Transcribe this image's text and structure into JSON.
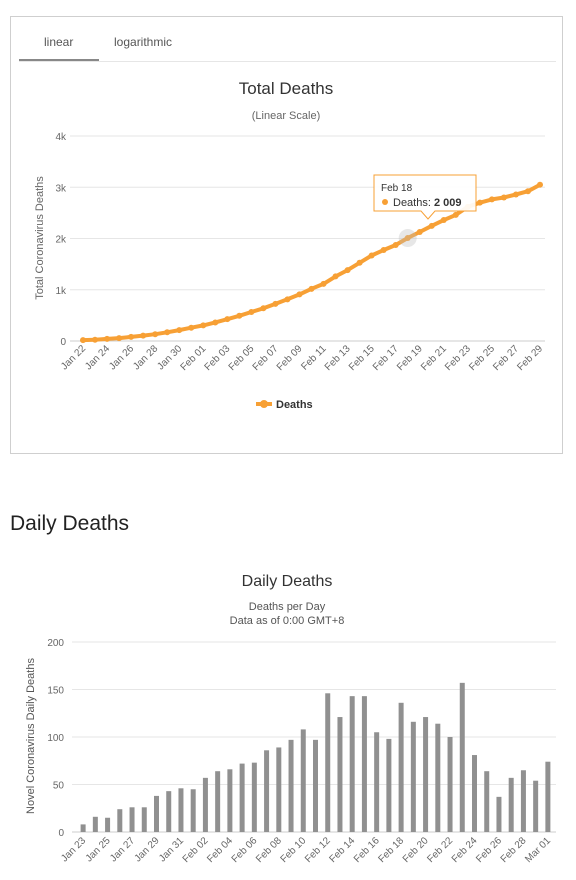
{
  "tabs": [
    {
      "label": "linear",
      "active": true
    },
    {
      "label": "logarithmic",
      "active": false
    }
  ],
  "colors": {
    "line_series": "#f7a035",
    "bar_series": "#909090",
    "grid": "#e6e6e6",
    "tooltip_border": "#f7a035"
  },
  "section_heading": "Daily Deaths",
  "chart_data": [
    {
      "type": "line",
      "title": "Total Deaths",
      "subtitle": "(Linear Scale)",
      "xlabel": "",
      "ylabel": "Total Coronavirus Deaths",
      "ylim": [
        0,
        4000
      ],
      "yticks": [
        "0",
        "1k",
        "2k",
        "3k",
        "4k"
      ],
      "ytick_values": [
        0,
        1000,
        2000,
        3000,
        4000
      ],
      "grid": true,
      "legend": "bottom-center",
      "x": [
        "Jan 22",
        "Jan 23",
        "Jan 24",
        "Jan 25",
        "Jan 26",
        "Jan 27",
        "Jan 28",
        "Jan 29",
        "Jan 30",
        "Jan 31",
        "Feb 01",
        "Feb 02",
        "Feb 03",
        "Feb 04",
        "Feb 05",
        "Feb 06",
        "Feb 07",
        "Feb 08",
        "Feb 09",
        "Feb 10",
        "Feb 11",
        "Feb 12",
        "Feb 13",
        "Feb 14",
        "Feb 15",
        "Feb 16",
        "Feb 17",
        "Feb 18",
        "Feb 19",
        "Feb 20",
        "Feb 21",
        "Feb 22",
        "Feb 23",
        "Feb 24",
        "Feb 25",
        "Feb 26",
        "Feb 27",
        "Feb 28",
        "Feb 29"
      ],
      "xtick_labels": [
        "Jan 22",
        "Jan 24",
        "Jan 26",
        "Jan 28",
        "Jan 30",
        "Feb 01",
        "Feb 03",
        "Feb 05",
        "Feb 07",
        "Feb 09",
        "Feb 11",
        "Feb 13",
        "Feb 15",
        "Feb 17",
        "Feb 19",
        "Feb 21",
        "Feb 23",
        "Feb 25",
        "Feb 27",
        "Feb 29"
      ],
      "series": [
        {
          "name": "Deaths",
          "values": [
            17,
            25,
            41,
            56,
            80,
            106,
            132,
            170,
            213,
            259,
            304,
            362,
            426,
            492,
            565,
            638,
            724,
            813,
            910,
            1018,
            1115,
            1261,
            1383,
            1526,
            1669,
            1775,
            1873,
            2009,
            2126,
            2247,
            2360,
            2460,
            2618,
            2699,
            2763,
            2800,
            2858,
            2923,
            3050
          ]
        }
      ],
      "tooltip": {
        "date": "Feb 18",
        "label": "Deaths",
        "value": "2 009"
      }
    },
    {
      "type": "bar",
      "title": "Daily Deaths",
      "subtitle_lines": [
        "Deaths per Day",
        "Data as of 0:00 GMT+8"
      ],
      "xlabel": "",
      "ylabel": "Novel Coronavirus Daily Deaths",
      "ylim": [
        0,
        200
      ],
      "yticks": [
        "0",
        "50",
        "100",
        "150",
        "200"
      ],
      "ytick_values": [
        0,
        50,
        100,
        150,
        200
      ],
      "grid": true,
      "categories": [
        "Jan 23",
        "Jan 24",
        "Jan 25",
        "Jan 26",
        "Jan 27",
        "Jan 28",
        "Jan 29",
        "Jan 30",
        "Jan 31",
        "Feb 01",
        "Feb 02",
        "Feb 03",
        "Feb 04",
        "Feb 05",
        "Feb 06",
        "Feb 07",
        "Feb 08",
        "Feb 09",
        "Feb 10",
        "Feb 11",
        "Feb 12",
        "Feb 13",
        "Feb 14",
        "Feb 15",
        "Feb 16",
        "Feb 17",
        "Feb 18",
        "Feb 19",
        "Feb 20",
        "Feb 21",
        "Feb 22",
        "Feb 23",
        "Feb 24",
        "Feb 25",
        "Feb 26",
        "Feb 27",
        "Feb 28",
        "Feb 29",
        "Mar 01"
      ],
      "xtick_labels": [
        "Jan 23",
        "Jan 25",
        "Jan 27",
        "Jan 29",
        "Jan 31",
        "Feb 02",
        "Feb 04",
        "Feb 06",
        "Feb 08",
        "Feb 10",
        "Feb 12",
        "Feb 14",
        "Feb 16",
        "Feb 18",
        "Feb 20",
        "Feb 22",
        "Feb 24",
        "Feb 26",
        "Feb 28",
        "Mar 01"
      ],
      "values": [
        8,
        16,
        15,
        24,
        26,
        26,
        38,
        43,
        46,
        45,
        57,
        64,
        66,
        72,
        73,
        86,
        89,
        97,
        108,
        97,
        146,
        121,
        143,
        143,
        105,
        98,
        136,
        116,
        121,
        114,
        100,
        157,
        81,
        64,
        37,
        57,
        65,
        54,
        74
      ]
    }
  ]
}
